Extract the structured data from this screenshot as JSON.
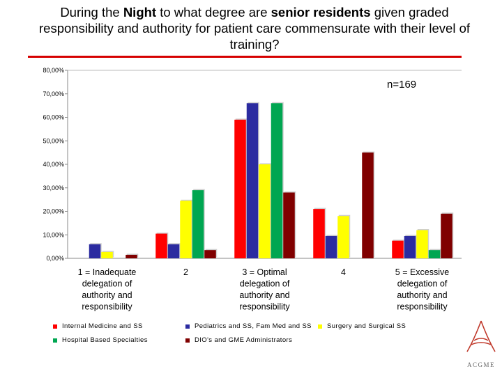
{
  "title": {
    "parts": [
      {
        "text": "During the ",
        "bold": false
      },
      {
        "text": "Night",
        "bold": true
      },
      {
        "text": " to what degree are ",
        "bold": false
      },
      {
        "text": "senior residents",
        "bold": true
      },
      {
        "text": " given graded responsibility and authority for patient care commensurate with their level of training?",
        "bold": false
      }
    ]
  },
  "annotation": "n=169",
  "colors": {
    "title_rule": "#d60000"
  },
  "logo": {
    "name": "ACGME",
    "color": "#c0392b"
  },
  "chart_data": {
    "type": "bar",
    "categories": [
      "1 = Inadequate delegation of authority and responsibility",
      "2",
      "3 = Optimal delegation of authority and responsibility",
      "4",
      "5 = Excessive delegation of authority and responsibility"
    ],
    "series": [
      {
        "name": "Internal Medicine and SS",
        "color": "#ff0000",
        "values": [
          0.0,
          10.5,
          59.0,
          21.0,
          7.5
        ]
      },
      {
        "name": "Pediatrics and SS, Fam Med and SS",
        "color": "#2b2ba0",
        "values": [
          6.0,
          6.0,
          66.0,
          9.5,
          9.5
        ]
      },
      {
        "name": "Surgery and Surgical SS",
        "color": "#ffff00",
        "values": [
          2.7,
          24.5,
          40.0,
          18.0,
          12.0
        ]
      },
      {
        "name": "Hospital Based Specialties",
        "color": "#00a651",
        "values": [
          0.0,
          29.0,
          66.0,
          0.0,
          3.5
        ]
      },
      {
        "name": "DIO's and GME Administrators",
        "color": "#800000",
        "values": [
          1.5,
          3.5,
          28.0,
          45.0,
          19.0
        ]
      }
    ],
    "ylim": [
      0,
      80
    ],
    "yticks": [
      "0,00%",
      "10,00%",
      "20,00%",
      "30,00%",
      "40,00%",
      "50,00%",
      "60,00%",
      "70,00%",
      "80,00%"
    ],
    "grid": false,
    "legend_position": "bottom"
  }
}
